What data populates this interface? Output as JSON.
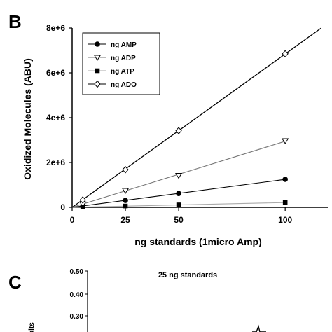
{
  "panel_b": {
    "letter": "B"
  },
  "panel_c": {
    "letter": "C",
    "title": "25 ng standards",
    "ylabel_partial": "olts",
    "yticks": [
      "0.50",
      "0.40",
      "0.30"
    ]
  },
  "chart_data": [
    {
      "type": "scatter",
      "panel": "B",
      "xlabel": "ng standards (1micro Amp)",
      "ylabel": "Oxidized Molecules (ABU)",
      "xlim": [
        0,
        120
      ],
      "ylim": [
        0,
        8000000
      ],
      "xticks": [
        0,
        25,
        50,
        100
      ],
      "xtick_labels": [
        "0",
        "25",
        "50",
        "100"
      ],
      "yticks": [
        0,
        2000000,
        4000000,
        6000000,
        8000000
      ],
      "ytick_labels": [
        "0",
        "2e+6",
        "4e+6",
        "6e+6",
        "8e+6"
      ],
      "legend_position": "top-left",
      "grid": false,
      "x": [
        5,
        25,
        50,
        100
      ],
      "series": [
        {
          "name": "ng AMP",
          "marker": "filled-circle",
          "line_color": "#000000",
          "values": [
            60000,
            310000,
            620000,
            1250000
          ]
        },
        {
          "name": "ng ADP",
          "marker": "open-triangle-down",
          "line_color": "#777777",
          "values": [
            150000,
            750000,
            1420000,
            2970000
          ]
        },
        {
          "name": "ng ATP",
          "marker": "filled-square",
          "line_color": "#aaaaaa",
          "values": [
            15000,
            60000,
            110000,
            210000
          ]
        },
        {
          "name": "ng ADO",
          "marker": "open-diamond",
          "line_color": "#000000",
          "values": [
            330000,
            1680000,
            3420000,
            6850000
          ]
        }
      ]
    }
  ]
}
